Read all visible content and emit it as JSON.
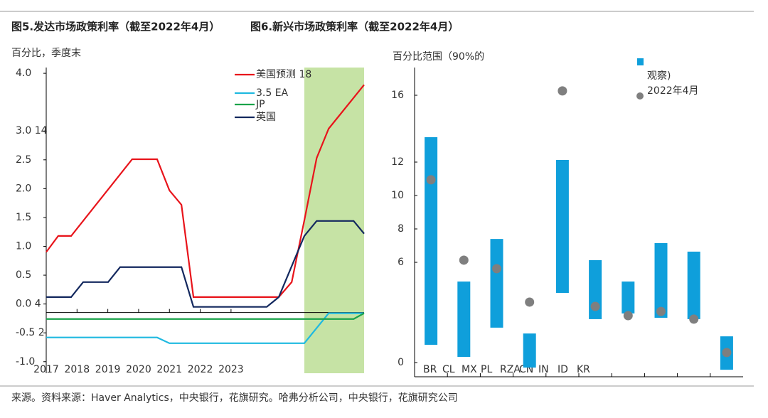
{
  "chart_data": [
    {
      "type": "line",
      "title": "图5.发达市场政策利率（截至2022年4月）",
      "subtitle": "百分比，季度末",
      "xlim": [
        2017,
        2027.32
      ],
      "xticks": [
        2017,
        2018,
        2019,
        2020,
        2021,
        2022,
        2023
      ],
      "ylim": [
        -1.2,
        4.1
      ],
      "yticks": [
        {
          "value": 4,
          "label": "4.0"
        },
        {
          "value": 3,
          "label": "3.0 14"
        },
        2.5,
        {
          "value": 2,
          "label": "2.0"
        },
        1.5,
        {
          "value": 1,
          "label": "1.0"
        },
        0.5,
        {
          "value": 0,
          "label": "0.0 4"
        },
        {
          "value": -0.5,
          "label": "-0.5 2"
        },
        {
          "value": -1,
          "label": "-1.0"
        }
      ],
      "shaded_x": [
        2025.38,
        2027.32
      ],
      "shade_color": "#c6e3a5",
      "series": [
        {
          "name": "美国预测 18",
          "color": "#e8141b",
          "x": [
            2017,
            2017.39,
            2017.81,
            2019.79,
            2020.6,
            2021,
            2021.39,
            2021.78,
            2024.55,
            2024.97,
            2025.38,
            2025.78,
            2026.17,
            2027.32
          ],
          "values": [
            0.9,
            1.18,
            1.18,
            2.51,
            2.51,
            1.97,
            1.72,
            0.12,
            0.12,
            0.38,
            1.45,
            2.53,
            3.04,
            3.8
          ]
        },
        {
          "name": "3.5 EA",
          "color": "#1fb9e0",
          "x": [
            2017,
            2020.6,
            2021,
            2025.38,
            2026.17,
            2027.32
          ],
          "values": [
            -0.58,
            -0.58,
            -0.68,
            -0.68,
            -0.16,
            -0.16
          ]
        },
        {
          "name": "JP",
          "color": "#1aa34a",
          "x": [
            2017,
            2026.98,
            2027.32
          ],
          "values": [
            -0.26,
            -0.26,
            -0.16
          ]
        },
        {
          "name": "英国",
          "color": "#13285e",
          "x": [
            2017,
            2017.81,
            2018.2,
            2019.01,
            2019.4,
            2021.39,
            2021.78,
            2024.16,
            2024.55,
            2025.38,
            2025.78,
            2026.98,
            2027.32
          ],
          "values": [
            0.12,
            0.12,
            0.38,
            0.38,
            0.64,
            0.64,
            -0.05,
            -0.05,
            0.12,
            1.18,
            1.44,
            1.44,
            1.22
          ]
        }
      ]
    },
    {
      "type": "range",
      "title": "图6.新兴市场政策利率（截至2022年4月）",
      "subtitle": "百分比范围（90%的",
      "categories": [
        "BR",
        "CL",
        "MX",
        "PL",
        "RZA",
        "CN",
        "IN",
        "ID",
        "KR",
        null
      ],
      "ylim": [
        -0.85,
        17.66
      ],
      "yticks": [
        16,
        12,
        10,
        8,
        6,
        0
      ],
      "series": [
        {
          "name": "观察)",
          "type": "range",
          "color": "#0f9fdb",
          "low": [
            1.06,
            0.34,
            2.09,
            -0.3,
            4.17,
            2.6,
            2.94,
            2.68,
            2.6,
            -0.43
          ],
          "high": [
            13.49,
            4.85,
            7.4,
            1.74,
            12.13,
            6.13,
            4.85,
            7.15,
            6.64,
            1.57
          ]
        },
        {
          "name": "2022年4月",
          "type": "scatter",
          "color": "#7f7f7f",
          "values": [
            10.94,
            6.13,
            5.62,
            3.62,
            16.26,
            3.36,
            2.81,
            3.06,
            2.6,
            0.6
          ]
        }
      ]
    }
  ],
  "source": "来源。资料来源：Haver Analytics，中央银行，花旗研究。哈弗分析公司，中央银行，花旗研究公司"
}
